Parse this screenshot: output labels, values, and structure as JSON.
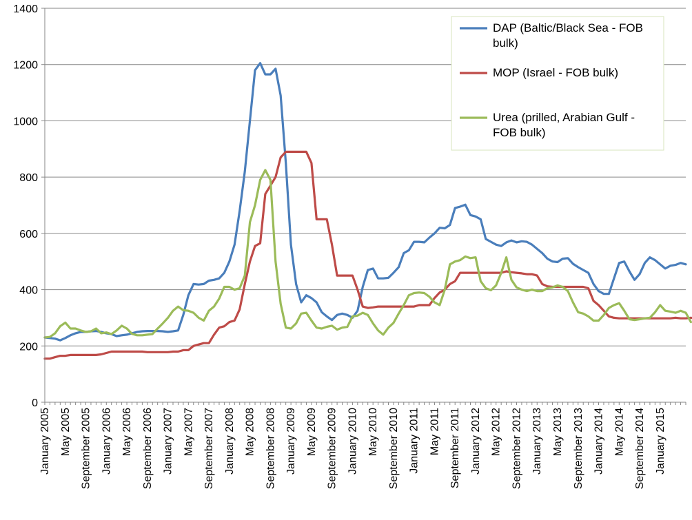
{
  "chart_data": {
    "type": "line",
    "title": "",
    "xlabel": "",
    "ylabel": "",
    "ylim": [
      0,
      1400
    ],
    "yticks": [
      0,
      200,
      400,
      600,
      800,
      1000,
      1200,
      1400
    ],
    "grid": "horizontal",
    "legend_position": "top-right",
    "x_tick_labels": [
      "January 2005",
      "May 2005",
      "September 2005",
      "January 2006",
      "May 2006",
      "September 2006",
      "January 2007",
      "May 2007",
      "September 2007",
      "January 2008",
      "May 2008",
      "September 2008",
      "January 2009",
      "May 2009",
      "September 2009",
      "January 2010",
      "May 2010",
      "September 2010",
      "January 2011",
      "May 2011",
      "September 2011",
      "January 2012",
      "May 2012",
      "September 2012",
      "January 2013",
      "May 2013",
      "September 2013",
      "January 2014",
      "May 2014",
      "September 2014",
      "January 2015"
    ],
    "x_tick_step_months": 4,
    "series": [
      {
        "name": "DAP (Baltic/Black Sea - FOB bulk)",
        "color": "#4a7ebb",
        "values": [
          230,
          228,
          226,
          220,
          228,
          238,
          245,
          250,
          250,
          252,
          253,
          250,
          245,
          242,
          235,
          238,
          240,
          245,
          250,
          252,
          253,
          253,
          253,
          252,
          250,
          252,
          255,
          310,
          380,
          420,
          418,
          420,
          432,
          435,
          440,
          460,
          500,
          560,
          680,
          820,
          1000,
          1180,
          1205,
          1165,
          1165,
          1185,
          1090,
          850,
          560,
          420,
          355,
          380,
          370,
          355,
          320,
          305,
          292,
          310,
          315,
          310,
          300,
          325,
          410,
          470,
          475,
          440,
          440,
          442,
          460,
          480,
          530,
          540,
          570,
          570,
          568,
          585,
          600,
          620,
          618,
          630,
          690,
          695,
          702,
          665,
          660,
          650,
          580,
          570,
          560,
          555,
          568,
          575,
          568,
          572,
          570,
          560,
          545,
          530,
          510,
          500,
          498,
          510,
          512,
          492,
          480,
          470,
          460,
          420,
          395,
          385,
          385,
          440,
          495,
          500,
          465,
          435,
          455,
          495,
          515,
          505,
          490,
          475,
          485,
          488,
          495,
          490
        ]
      },
      {
        "name": "MOP (Israel  - FOB bulk)",
        "color": "#be4b48",
        "values": [
          155,
          155,
          160,
          165,
          165,
          168,
          168,
          168,
          168,
          168,
          168,
          170,
          175,
          180,
          180,
          180,
          180,
          180,
          180,
          180,
          178,
          178,
          178,
          178,
          178,
          180,
          180,
          185,
          185,
          200,
          205,
          210,
          210,
          240,
          265,
          270,
          285,
          290,
          330,
          420,
          500,
          555,
          565,
          740,
          770,
          800,
          870,
          890,
          890,
          890,
          890,
          890,
          850,
          650,
          650,
          650,
          560,
          450,
          450,
          450,
          450,
          400,
          340,
          335,
          337,
          340,
          340,
          340,
          340,
          340,
          340,
          340,
          340,
          345,
          345,
          345,
          370,
          390,
          400,
          420,
          430,
          460,
          460,
          460,
          460,
          460,
          460,
          460,
          460,
          460,
          465,
          462,
          460,
          458,
          455,
          455,
          450,
          420,
          412,
          410,
          410,
          410,
          410,
          410,
          410,
          410,
          405,
          360,
          345,
          325,
          305,
          300,
          298,
          298,
          298,
          298,
          298,
          298,
          298,
          298,
          298,
          298,
          298,
          300,
          298,
          298,
          300,
          298
        ]
      },
      {
        "name": "Urea (prilled, Arabian Gulf - FOB bulk)",
        "color": "#9bbb59",
        "values": [
          230,
          232,
          245,
          270,
          283,
          262,
          262,
          255,
          250,
          252,
          262,
          245,
          248,
          242,
          255,
          272,
          262,
          243,
          238,
          238,
          240,
          242,
          262,
          280,
          300,
          325,
          340,
          327,
          325,
          318,
          300,
          290,
          325,
          340,
          368,
          410,
          410,
          400,
          405,
          450,
          640,
          700,
          790,
          825,
          790,
          500,
          350,
          265,
          262,
          280,
          315,
          318,
          290,
          265,
          262,
          268,
          272,
          258,
          265,
          268,
          305,
          308,
          318,
          310,
          280,
          255,
          240,
          265,
          282,
          315,
          345,
          380,
          388,
          390,
          388,
          375,
          355,
          345,
          400,
          490,
          500,
          505,
          518,
          512,
          515,
          430,
          405,
          398,
          415,
          460,
          515,
          435,
          408,
          400,
          395,
          400,
          395,
          395,
          405,
          408,
          415,
          410,
          395,
          355,
          320,
          315,
          305,
          290,
          290,
          310,
          335,
          345,
          352,
          325,
          295,
          292,
          295,
          298,
          300,
          320,
          345,
          325,
          322,
          318,
          325,
          318,
          285
        ]
      }
    ]
  }
}
